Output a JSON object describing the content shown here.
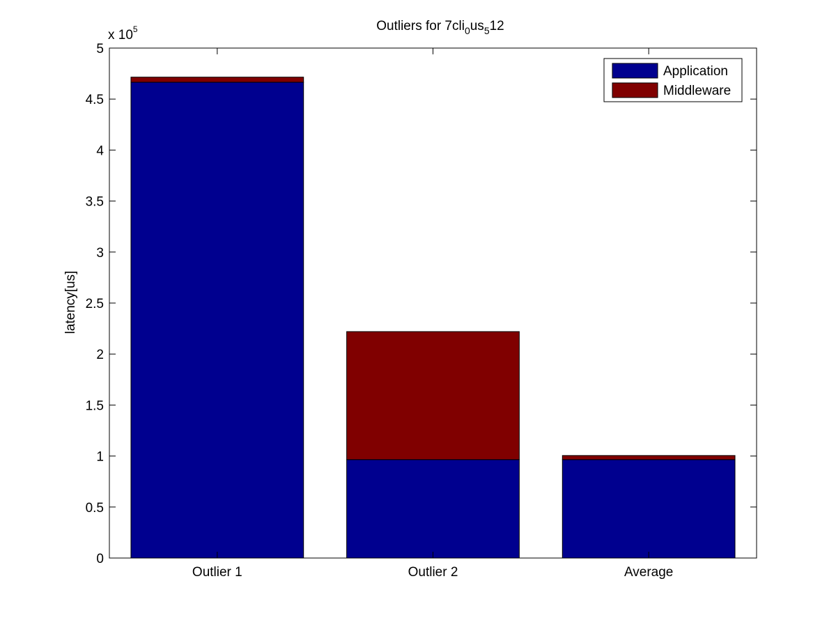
{
  "chart_data": {
    "type": "bar",
    "stacked": true,
    "title": {
      "main": "Outliers for 7cli",
      "sub1": "0",
      "mid": "us",
      "sub2": "5",
      "tail": "12"
    },
    "xlabel": "",
    "ylabel": "latency[us]",
    "y_multiplier_label": {
      "base": "x 10",
      "exponent": "5"
    },
    "categories": [
      "Outlier 1",
      "Outlier 2",
      "Average"
    ],
    "series": [
      {
        "name": "Application",
        "color": "#00008f",
        "values": [
          466500,
          96500,
          96500
        ]
      },
      {
        "name": "Middleware",
        "color": "#800000",
        "values": [
          5000,
          125500,
          4000
        ]
      }
    ],
    "ylim": [
      0,
      500000
    ],
    "y_ticks": [
      {
        "value": 0,
        "label": "0"
      },
      {
        "value": 50000,
        "label": "0.5"
      },
      {
        "value": 100000,
        "label": "1"
      },
      {
        "value": 150000,
        "label": "1.5"
      },
      {
        "value": 200000,
        "label": "2"
      },
      {
        "value": 250000,
        "label": "2.5"
      },
      {
        "value": 300000,
        "label": "3"
      },
      {
        "value": 350000,
        "label": "3.5"
      },
      {
        "value": 400000,
        "label": "4"
      },
      {
        "value": 450000,
        "label": "4.5"
      },
      {
        "value": 500000,
        "label": "5"
      }
    ],
    "grid": false,
    "legend_position": "top-right"
  }
}
